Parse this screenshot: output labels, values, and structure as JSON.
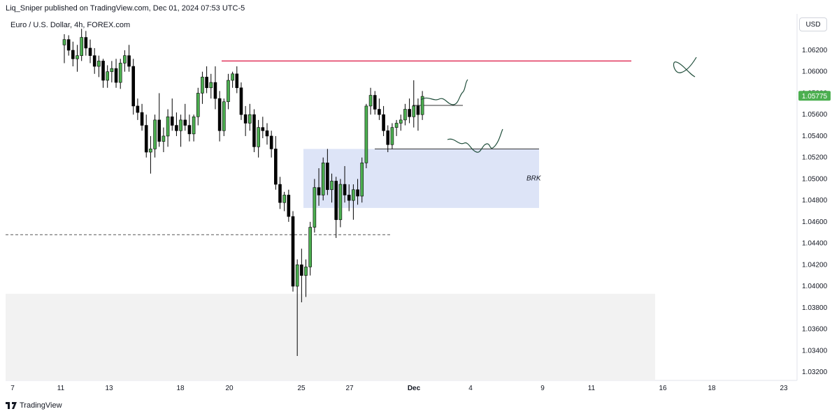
{
  "header": {
    "text": "Liq_Sniper published on TradingView.com, Dec 01, 2024 07:53 UTC-5"
  },
  "symbol": {
    "text": "Euro / U.S. Dollar, 4h, FOREX.com"
  },
  "currency_button": {
    "label": "USD"
  },
  "footer": {
    "brand": "TradingView"
  },
  "colors": {
    "up": "#4caf50",
    "down": "#000000",
    "resistance": "#e0355c",
    "zone_blue": "#dde4f7",
    "zone_grey": "#f2f2f2",
    "price_badge": "#4caf50"
  },
  "chart_data": {
    "type": "candlestick",
    "symbol": "Euro / U.S. Dollar",
    "interval": "4h",
    "ylim": [
      1.031,
      1.064
    ],
    "y_ticks": [
      "1.06200",
      "1.06000",
      "1.05800",
      "1.05600",
      "1.05400",
      "1.05200",
      "1.05000",
      "1.04800",
      "1.04600",
      "1.04400",
      "1.04200",
      "1.04000",
      "1.03800",
      "1.03600",
      "1.03400",
      "1.03200"
    ],
    "x_ticks": [
      "7",
      "11",
      "13",
      "18",
      "20",
      "25",
      "27",
      "Dec",
      "4",
      "9",
      "11",
      "16",
      "18",
      "23"
    ],
    "last_price": "1.05775",
    "annotations": {
      "resistance_level": 1.061,
      "dashed_level": 1.0448,
      "brk_zone": {
        "label": "BRK",
        "low": 1.0473,
        "high": 1.0528
      },
      "grey_zone": {
        "low": 1.0302,
        "high": 1.0393
      }
    },
    "candles": [
      [
        1.0625,
        1.0635,
        1.0608,
        1.063
      ],
      [
        1.063,
        1.0634,
        1.0615,
        1.062
      ],
      [
        1.062,
        1.0628,
        1.0605,
        1.0612
      ],
      [
        1.0612,
        1.0625,
        1.06,
        1.0615
      ],
      [
        1.0615,
        1.064,
        1.061,
        1.0632
      ],
      [
        1.0632,
        1.0638,
        1.0615,
        1.0622
      ],
      [
        1.0622,
        1.063,
        1.0608,
        1.0615
      ],
      [
        1.0615,
        1.0622,
        1.0598,
        1.0605
      ],
      [
        1.0605,
        1.0615,
        1.0595,
        1.061
      ],
      [
        1.061,
        1.0612,
        1.0585,
        1.0592
      ],
      [
        1.0592,
        1.0606,
        1.0585,
        1.06
      ],
      [
        1.06,
        1.061,
        1.059,
        1.0603
      ],
      [
        1.0603,
        1.0612,
        1.0585,
        1.059
      ],
      [
        1.059,
        1.0612,
        1.0584,
        1.0608
      ],
      [
        1.0608,
        1.062,
        1.06,
        1.0615
      ],
      [
        1.0615,
        1.0625,
        1.06,
        1.0605
      ],
      [
        1.0605,
        1.0612,
        1.056,
        1.0568
      ],
      [
        1.0568,
        1.0575,
        1.0555,
        1.0562
      ],
      [
        1.0562,
        1.057,
        1.0545,
        1.055
      ],
      [
        1.055,
        1.056,
        1.052,
        1.0525
      ],
      [
        1.0525,
        1.054,
        1.0505,
        1.0528
      ],
      [
        1.0528,
        1.056,
        1.052,
        1.0555
      ],
      [
        1.0555,
        1.058,
        1.053,
        1.0535
      ],
      [
        1.0535,
        1.0548,
        1.0525,
        1.054
      ],
      [
        1.054,
        1.0565,
        1.053,
        1.0558
      ],
      [
        1.0558,
        1.0575,
        1.0545,
        1.055
      ],
      [
        1.055,
        1.0562,
        1.054,
        1.0545
      ],
      [
        1.0545,
        1.056,
        1.053,
        1.0555
      ],
      [
        1.0555,
        1.057,
        1.0545,
        1.055
      ],
      [
        1.055,
        1.056,
        1.0535,
        1.0542
      ],
      [
        1.0542,
        1.056,
        1.0535,
        1.0558
      ],
      [
        1.0558,
        1.0585,
        1.055,
        1.058
      ],
      [
        1.058,
        1.06,
        1.057,
        1.0595
      ],
      [
        1.0595,
        1.0605,
        1.058,
        1.0585
      ],
      [
        1.0585,
        1.0598,
        1.0575,
        1.059
      ],
      [
        1.059,
        1.0605,
        1.0565,
        1.0575
      ],
      [
        1.0575,
        1.0582,
        1.0535,
        1.0545
      ],
      [
        1.0545,
        1.0575,
        1.054,
        1.0572
      ],
      [
        1.0572,
        1.0598,
        1.0565,
        1.0592
      ],
      [
        1.0592,
        1.06,
        1.0585,
        1.0598
      ],
      [
        1.0598,
        1.0605,
        1.058,
        1.0585
      ],
      [
        1.0585,
        1.059,
        1.0555,
        1.056
      ],
      [
        1.056,
        1.0568,
        1.054,
        1.0552
      ],
      [
        1.0552,
        1.057,
        1.0545,
        1.056
      ],
      [
        1.056,
        1.0565,
        1.0525,
        1.053
      ],
      [
        1.053,
        1.0555,
        1.052,
        1.0548
      ],
      [
        1.0548,
        1.0558,
        1.0538,
        1.0545
      ],
      [
        1.0545,
        1.0552,
        1.0532,
        1.054
      ],
      [
        1.054,
        1.0545,
        1.052,
        1.0528
      ],
      [
        1.0528,
        1.054,
        1.049,
        1.0495
      ],
      [
        1.0495,
        1.0502,
        1.0472,
        1.0478
      ],
      [
        1.0478,
        1.0488,
        1.047,
        1.0485
      ],
      [
        1.0485,
        1.049,
        1.046,
        1.0465
      ],
      [
        1.0465,
        1.047,
        1.0395,
        1.04
      ],
      [
        1.04,
        1.0425,
        1.0335,
        1.042
      ],
      [
        1.042,
        1.0435,
        1.0385,
        1.041
      ],
      [
        1.041,
        1.0425,
        1.039,
        1.0418
      ],
      [
        1.0418,
        1.046,
        1.041,
        1.0455
      ],
      [
        1.0455,
        1.05,
        1.045,
        1.0492
      ],
      [
        1.0492,
        1.051,
        1.0475,
        1.0485
      ],
      [
        1.0485,
        1.052,
        1.048,
        1.0515
      ],
      [
        1.0515,
        1.0528,
        1.0485,
        1.049
      ],
      [
        1.049,
        1.0505,
        1.0478,
        1.0498
      ],
      [
        1.0498,
        1.0502,
        1.0445,
        1.0462
      ],
      [
        1.0462,
        1.05,
        1.0455,
        1.0495
      ],
      [
        1.0495,
        1.0512,
        1.0478,
        1.0485
      ],
      [
        1.0485,
        1.0495,
        1.047,
        1.048
      ],
      [
        1.048,
        1.0495,
        1.0462,
        1.049
      ],
      [
        1.049,
        1.05,
        1.0476,
        1.0484
      ],
      [
        1.0484,
        1.052,
        1.0478,
        1.0515
      ],
      [
        1.0515,
        1.057,
        1.051,
        1.0568
      ],
      [
        1.0568,
        1.0585,
        1.056,
        1.0578
      ],
      [
        1.0578,
        1.0582,
        1.056,
        1.0565
      ],
      [
        1.0565,
        1.0575,
        1.0555,
        1.056
      ],
      [
        1.056,
        1.0568,
        1.054,
        1.0545
      ],
      [
        1.0545,
        1.055,
        1.0525,
        1.0532
      ],
      [
        1.0532,
        1.0552,
        1.0528,
        1.0548
      ],
      [
        1.0548,
        1.0555,
        1.054,
        1.0552
      ],
      [
        1.0552,
        1.056,
        1.0545,
        1.0555
      ],
      [
        1.0555,
        1.057,
        1.055,
        1.0565
      ],
      [
        1.0565,
        1.0575,
        1.0552,
        1.0558
      ],
      [
        1.0558,
        1.0592,
        1.0548,
        1.0568
      ],
      [
        1.0568,
        1.0575,
        1.0545,
        1.056
      ],
      [
        1.056,
        1.0582,
        1.0555,
        1.0577
      ]
    ]
  }
}
